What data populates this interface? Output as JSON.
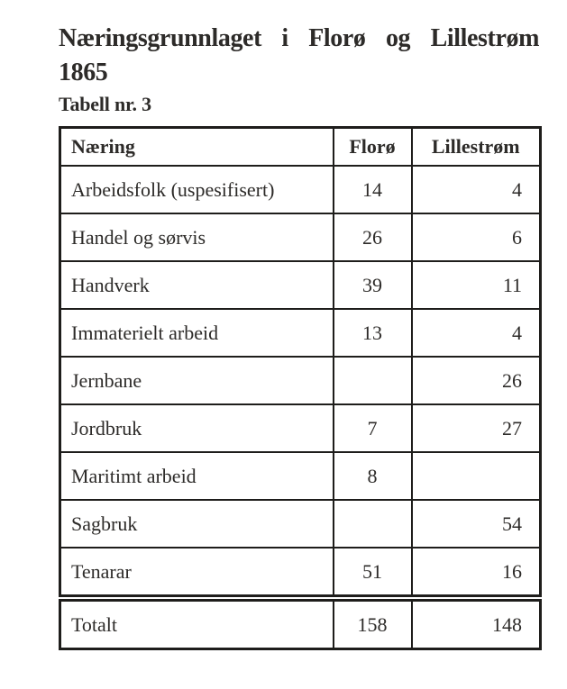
{
  "header": {
    "title_line1": "Næringsgrunnlaget i Florø og Lillestrøm",
    "title_line2": "1865",
    "caption": "Tabell nr. 3"
  },
  "table": {
    "columns": [
      "Næring",
      "Florø",
      "Lillestrøm"
    ],
    "rows": [
      [
        "Arbeidsfolk (uspesifisert)",
        "14",
        "4"
      ],
      [
        "Handel og sørvis",
        "26",
        "6"
      ],
      [
        "Handverk",
        "39",
        "11"
      ],
      [
        "Immaterielt arbeid",
        "13",
        "4"
      ],
      [
        "Jernbane",
        "",
        "26"
      ],
      [
        "Jordbruk",
        "7",
        "27"
      ],
      [
        "Maritimt arbeid",
        "8",
        ""
      ],
      [
        "Sagbruk",
        "",
        "54"
      ],
      [
        "Tenarar",
        "51",
        "16"
      ],
      [
        "Totalt",
        "158",
        "148"
      ]
    ]
  },
  "colors": {
    "text": "#2d2b29",
    "border": "#1e1d1b",
    "background": "#ffffff"
  }
}
